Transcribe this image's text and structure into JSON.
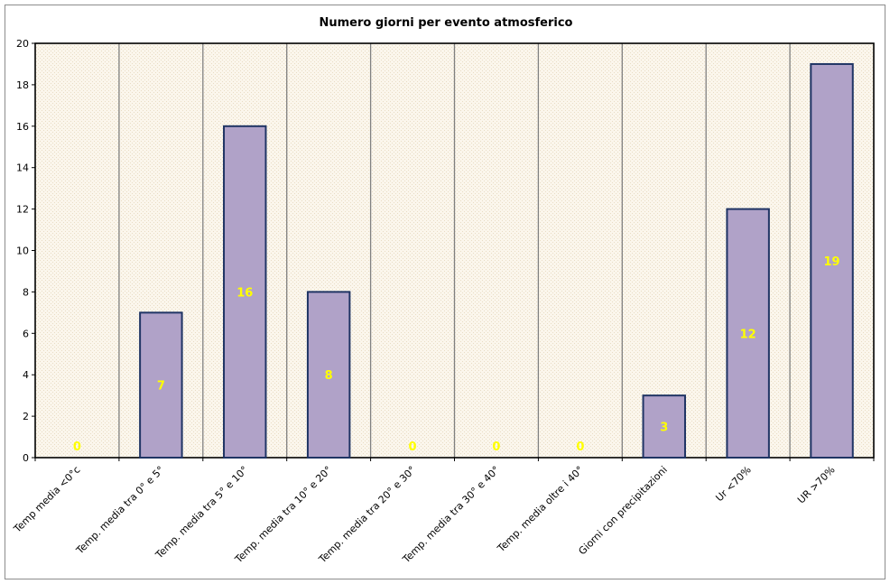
{
  "chart_data": {
    "type": "bar",
    "title": "Numero giorni per evento atmosferico",
    "xlabel": "",
    "ylabel": "",
    "categories": [
      "Temp media <0°c",
      "Temp. media tra 0° e 5°",
      "Temp. media tra 5° e 10°",
      "Temp. media tra 10° e 20°",
      "Temp. media tra 20° e 30°",
      "Temp. media tra 30° e 40°",
      "Temp. media oltre i 40°",
      "Giorni con precipitazioni",
      "Ur <70%",
      "UR >70%"
    ],
    "values": [
      0,
      7,
      16,
      8,
      0,
      0,
      0,
      3,
      12,
      19
    ],
    "data_labels": [
      "0",
      "7",
      "16",
      "8",
      "0",
      "0",
      "0",
      "3",
      "12",
      "19"
    ],
    "ylim": [
      0,
      20
    ],
    "yticks": [
      0,
      2,
      4,
      6,
      8,
      10,
      12,
      14,
      16,
      18,
      20
    ],
    "grid": "vertical",
    "legend": "none",
    "colors": {
      "bar_fill": "#b0a2c8",
      "bar_stroke": "#1f3464",
      "plot_background": "#fbf6ec",
      "gridline": "#808080",
      "data_label": "#ffff00"
    }
  }
}
